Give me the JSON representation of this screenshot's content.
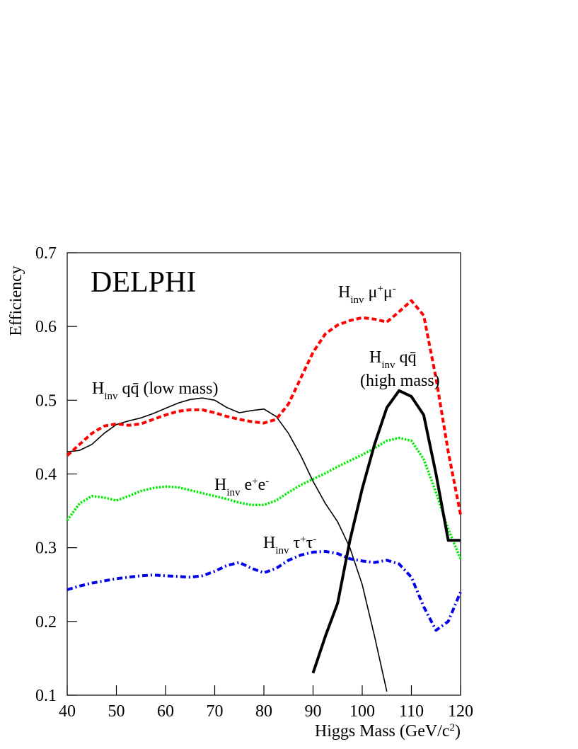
{
  "chart_data": {
    "type": "line",
    "title": "DELPHI",
    "x_label": [
      {
        "text": "Higgs Mass (GeV/c"
      },
      {
        "text": "2",
        "shift": "super"
      },
      {
        "text": ")"
      }
    ],
    "y_label": "Efficiency",
    "x": [
      40,
      42.5,
      45,
      47.5,
      50,
      52.5,
      55,
      57.5,
      60,
      62.5,
      65,
      67.5,
      70,
      72.5,
      75,
      77.5,
      80,
      82.5,
      85,
      87.5,
      90,
      92.5,
      95,
      97.5,
      100,
      102.5,
      105,
      107.5,
      110,
      112.5,
      115,
      117.5,
      120
    ],
    "xlim": [
      40,
      120
    ],
    "ylim": [
      0.1,
      0.7
    ],
    "xticks": [
      40,
      50,
      60,
      70,
      80,
      90,
      100,
      110,
      120
    ],
    "yticks": [
      0.1,
      0.2,
      0.3,
      0.4,
      0.5,
      0.6,
      0.7
    ],
    "series": [
      {
        "color": "#000000",
        "style": "solid",
        "linewidth": 1.6,
        "label": [
          [
            {
              "text": "H"
            },
            {
              "text": "inv",
              "shift": "sub"
            },
            {
              "text": " qq̄ (low mass)"
            }
          ]
        ],
        "values": [
          0.43,
          0.432,
          0.44,
          0.455,
          0.467,
          0.472,
          0.476,
          0.482,
          0.489,
          0.496,
          0.501,
          0.503,
          0.5,
          0.49,
          0.483,
          0.486,
          0.488,
          0.478,
          0.455,
          0.425,
          0.39,
          0.36,
          0.335,
          0.3,
          0.25,
          0.18,
          0.105,
          null,
          null,
          null,
          null,
          null,
          null
        ]
      },
      {
        "color": "#ff0000",
        "style": "dashed",
        "linewidth": 4,
        "label": [
          [
            {
              "text": "H"
            },
            {
              "text": "inv",
              "shift": "sub"
            },
            {
              "text": " μ"
            },
            {
              "text": "+",
              "shift": "super"
            },
            {
              "text": "μ"
            },
            {
              "text": "-",
              "shift": "super"
            }
          ]
        ],
        "values": [
          0.425,
          0.44,
          0.455,
          0.465,
          0.468,
          0.466,
          0.468,
          0.474,
          0.48,
          0.485,
          0.487,
          0.487,
          0.483,
          0.478,
          0.474,
          0.471,
          0.469,
          0.474,
          0.495,
          0.53,
          0.565,
          0.59,
          0.602,
          0.608,
          0.612,
          0.61,
          0.606,
          0.62,
          0.635,
          0.615,
          0.53,
          0.43,
          0.345
        ]
      },
      {
        "color": "#00ee00",
        "style": "dotted",
        "linewidth": 3.5,
        "label": [
          [
            {
              "text": "H"
            },
            {
              "text": "inv",
              "shift": "sub"
            },
            {
              "text": " e"
            },
            {
              "text": "+",
              "shift": "super"
            },
            {
              "text": "e"
            },
            {
              "text": "-",
              "shift": "super"
            }
          ]
        ],
        "values": [
          0.337,
          0.36,
          0.37,
          0.368,
          0.364,
          0.37,
          0.377,
          0.381,
          0.383,
          0.382,
          0.378,
          0.374,
          0.37,
          0.366,
          0.361,
          0.358,
          0.358,
          0.364,
          0.375,
          0.385,
          0.393,
          0.401,
          0.41,
          0.418,
          0.426,
          0.435,
          0.445,
          0.449,
          0.445,
          0.42,
          0.375,
          0.325,
          0.285
        ]
      },
      {
        "color": "#0000ee",
        "style": "dashdot",
        "linewidth": 4,
        "label": [
          [
            {
              "text": "H"
            },
            {
              "text": "inv",
              "shift": "sub"
            },
            {
              "text": " τ"
            },
            {
              "text": "+",
              "shift": "super"
            },
            {
              "text": "τ"
            },
            {
              "text": "-",
              "shift": "super"
            }
          ]
        ],
        "values": [
          0.243,
          0.248,
          0.252,
          0.255,
          0.258,
          0.26,
          0.262,
          0.263,
          0.262,
          0.261,
          0.26,
          0.262,
          0.268,
          0.276,
          0.28,
          0.272,
          0.266,
          0.272,
          0.283,
          0.29,
          0.294,
          0.295,
          0.292,
          0.285,
          0.282,
          0.28,
          0.283,
          0.278,
          0.26,
          0.22,
          0.188,
          0.2,
          0.24
        ]
      },
      {
        "color": "#000000",
        "style": "solid",
        "linewidth": 4,
        "label": [
          [
            {
              "text": "H"
            },
            {
              "text": "inv",
              "shift": "sub"
            },
            {
              "text": " qq̄"
            }
          ],
          [
            {
              "text": "(high mass)"
            }
          ]
        ],
        "values": [
          null,
          null,
          null,
          null,
          null,
          null,
          null,
          null,
          null,
          null,
          null,
          null,
          null,
          null,
          null,
          null,
          null,
          null,
          null,
          null,
          0.13,
          0.18,
          0.225,
          0.31,
          0.38,
          0.44,
          0.49,
          0.513,
          0.505,
          0.48,
          0.4,
          0.31,
          0.31
        ]
      }
    ]
  }
}
